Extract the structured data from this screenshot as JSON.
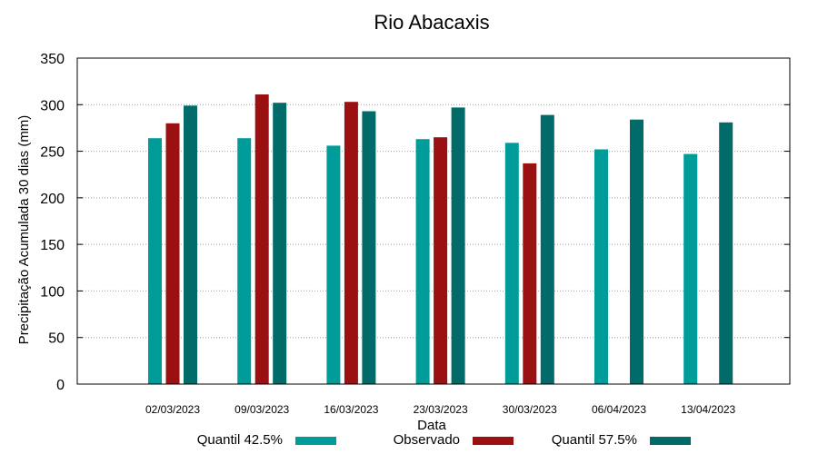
{
  "chart_data": {
    "type": "bar",
    "title": "Rio Abacaxis",
    "xlabel": "Data",
    "ylabel": "Precipitação Acumulada 30 dias (mm)",
    "ylim": [
      0,
      350
    ],
    "yticks": [
      0,
      50,
      100,
      150,
      200,
      250,
      300,
      350
    ],
    "grid": true,
    "legend_position": "bottom",
    "categories": [
      "02/03/2023",
      "09/03/2023",
      "16/03/2023",
      "23/03/2023",
      "30/03/2023",
      "06/04/2023",
      "13/04/2023"
    ],
    "series": [
      {
        "name": "Quantil 42.5%",
        "color": "#009c99",
        "values": [
          264,
          264,
          256,
          263,
          259,
          252,
          247
        ]
      },
      {
        "name": "Observado",
        "color": "#9b1010",
        "values": [
          280,
          311,
          303,
          265,
          237,
          null,
          null
        ]
      },
      {
        "name": "Quantil 57.5%",
        "color": "#006b68",
        "values": [
          299,
          302,
          293,
          297,
          289,
          284,
          281
        ]
      }
    ]
  }
}
